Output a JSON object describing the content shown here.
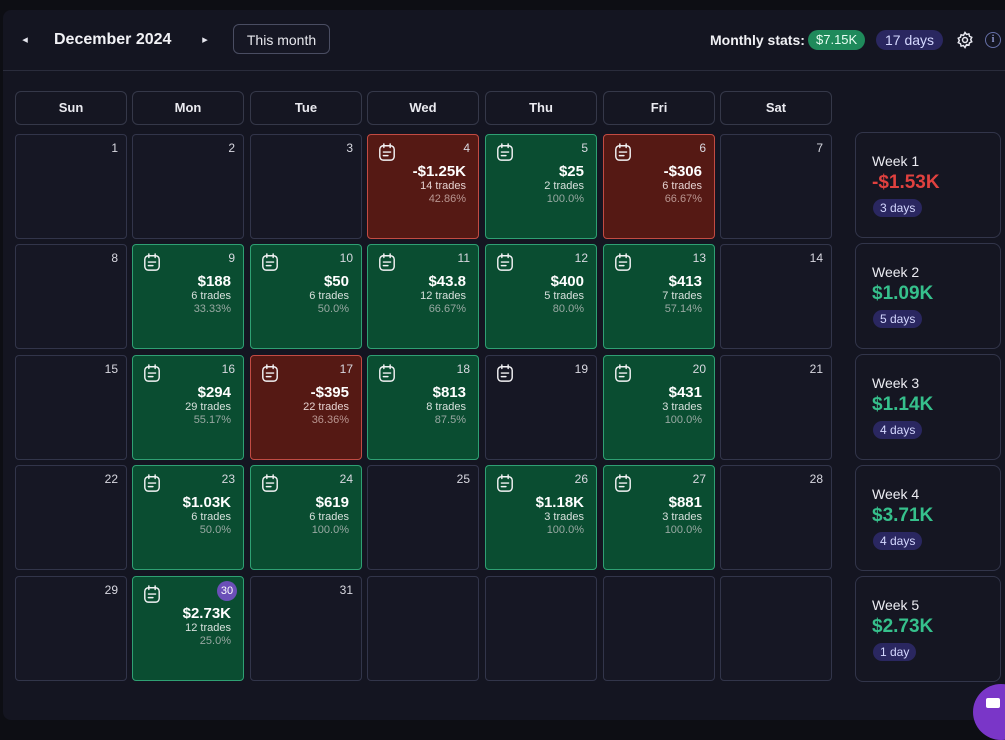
{
  "header": {
    "prev_label": "◂",
    "next_label": "▸",
    "month": "December 2024",
    "this_month_label": "This month",
    "stats_label": "Monthly stats:",
    "stats_pnl": "$7.15K",
    "stats_days": "17 days"
  },
  "weekdays": [
    "Sun",
    "Mon",
    "Tue",
    "Wed",
    "Thu",
    "Fri",
    "Sat"
  ],
  "days": [
    {
      "day": "1"
    },
    {
      "day": "2"
    },
    {
      "day": "3"
    },
    {
      "day": "4",
      "amount": "-$1.25K",
      "trades": "14 trades",
      "pct": "42.86%",
      "status": "loss"
    },
    {
      "day": "5",
      "amount": "$25",
      "trades": "2 trades",
      "pct": "100.0%",
      "status": "win"
    },
    {
      "day": "6",
      "amount": "-$306",
      "trades": "6 trades",
      "pct": "66.67%",
      "status": "loss"
    },
    {
      "day": "7"
    },
    {
      "day": "8"
    },
    {
      "day": "9",
      "amount": "$188",
      "trades": "6 trades",
      "pct": "33.33%",
      "status": "win"
    },
    {
      "day": "10",
      "amount": "$50",
      "trades": "6 trades",
      "pct": "50.0%",
      "status": "win"
    },
    {
      "day": "11",
      "amount": "$43.8",
      "trades": "12 trades",
      "pct": "66.67%",
      "status": "win"
    },
    {
      "day": "12",
      "amount": "$400",
      "trades": "5 trades",
      "pct": "80.0%",
      "status": "win"
    },
    {
      "day": "13",
      "amount": "$413",
      "trades": "7 trades",
      "pct": "57.14%",
      "status": "win"
    },
    {
      "day": "14"
    },
    {
      "day": "15"
    },
    {
      "day": "16",
      "amount": "$294",
      "trades": "29 trades",
      "pct": "55.17%",
      "status": "win"
    },
    {
      "day": "17",
      "amount": "-$395",
      "trades": "22 trades",
      "pct": "36.36%",
      "status": "loss"
    },
    {
      "day": "18",
      "amount": "$813",
      "trades": "8 trades",
      "pct": "87.5%",
      "status": "win"
    },
    {
      "day": "19",
      "status": "note"
    },
    {
      "day": "20",
      "amount": "$431",
      "trades": "3 trades",
      "pct": "100.0%",
      "status": "win"
    },
    {
      "day": "21"
    },
    {
      "day": "22"
    },
    {
      "day": "23",
      "amount": "$1.03K",
      "trades": "6 trades",
      "pct": "50.0%",
      "status": "win"
    },
    {
      "day": "24",
      "amount": "$619",
      "trades": "6 trades",
      "pct": "100.0%",
      "status": "win"
    },
    {
      "day": "25"
    },
    {
      "day": "26",
      "amount": "$1.18K",
      "trades": "3 trades",
      "pct": "100.0%",
      "status": "win"
    },
    {
      "day": "27",
      "amount": "$881",
      "trades": "3 trades",
      "pct": "100.0%",
      "status": "win"
    },
    {
      "day": "28"
    },
    {
      "day": "29"
    },
    {
      "day": "30",
      "amount": "$2.73K",
      "trades": "12 trades",
      "pct": "25.0%",
      "status": "win",
      "today": true
    },
    {
      "day": "31"
    },
    {
      "day": ""
    },
    {
      "day": ""
    },
    {
      "day": ""
    },
    {
      "day": ""
    }
  ],
  "weeks": [
    {
      "label": "Week 1",
      "amount": "-$1.53K",
      "days": "3 days",
      "sign": "neg"
    },
    {
      "label": "Week 2",
      "amount": "$1.09K",
      "days": "5 days",
      "sign": "pos"
    },
    {
      "label": "Week 3",
      "amount": "$1.14K",
      "days": "4 days",
      "sign": "pos"
    },
    {
      "label": "Week 4",
      "amount": "$3.71K",
      "days": "4 days",
      "sign": "pos"
    },
    {
      "label": "Week 5",
      "amount": "$2.73K",
      "days": "1 day",
      "sign": "pos"
    }
  ],
  "colors": {
    "win": "#0a4d31",
    "loss": "#551914",
    "accent": "#7a36c8"
  },
  "icons": {
    "prev": "caret-left-icon",
    "next": "caret-right-icon",
    "settings": "gear-icon",
    "info": "info-icon",
    "note": "notebook-icon",
    "chat": "chat-icon"
  }
}
